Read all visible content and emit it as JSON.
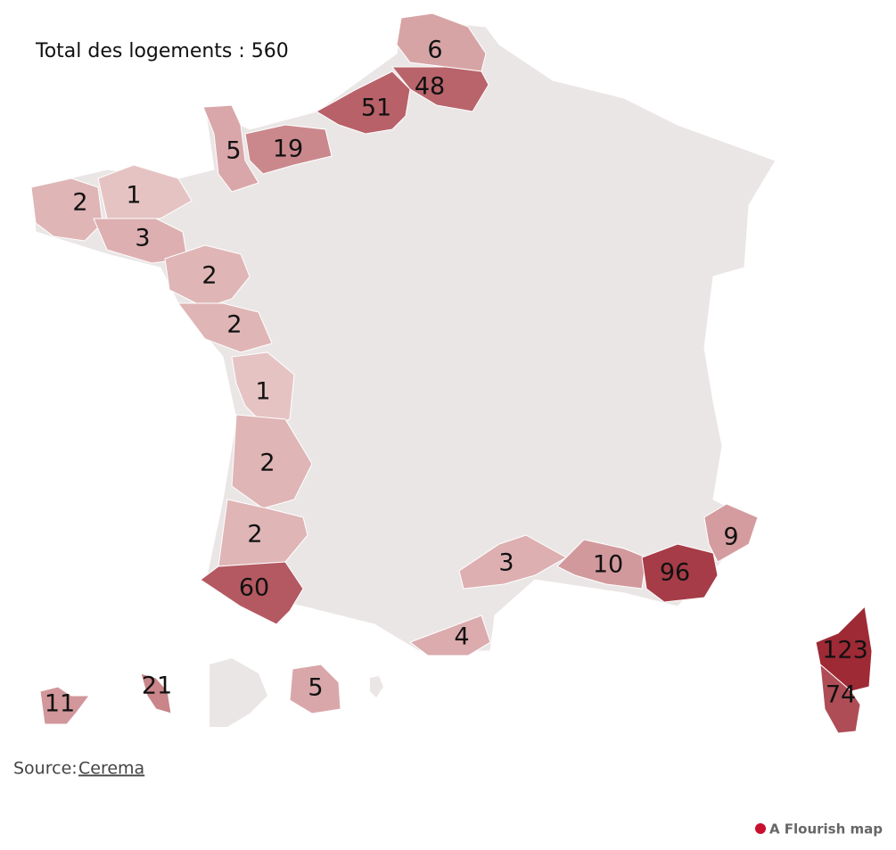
{
  "title": "Total des logements : 560",
  "regions": [
    {
      "value": 6
    },
    {
      "value": 48
    },
    {
      "value": 51
    },
    {
      "value": 5
    },
    {
      "value": 19
    },
    {
      "value": 2
    },
    {
      "value": 1
    },
    {
      "value": 3
    },
    {
      "value": 2
    },
    {
      "value": 2
    },
    {
      "value": 1
    },
    {
      "value": 2
    },
    {
      "value": 2
    },
    {
      "value": 60
    },
    {
      "value": 3
    },
    {
      "value": 4
    },
    {
      "value": 10
    },
    {
      "value": 96
    },
    {
      "value": 9
    },
    {
      "value": 123
    },
    {
      "value": 74
    },
    {
      "value": 11
    },
    {
      "value": 21
    },
    {
      "value": 5
    }
  ],
  "color_scale": {
    "low": "#e6c3c3",
    "high": "#9e2a36"
  },
  "base_color": "#ebe6e6",
  "source": {
    "label": "Source:",
    "link": "Cerema"
  },
  "credit": "A Flourish map"
}
